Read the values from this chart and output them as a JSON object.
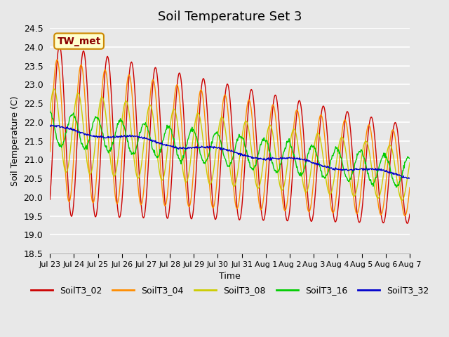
{
  "title": "Soil Temperature Set 3",
  "xlabel": "Time",
  "ylabel": "Soil Temperature (C)",
  "ylim": [
    18.5,
    24.5
  ],
  "annotation": "TW_met",
  "annotation_color": "#8B0000",
  "annotation_bg": "#FFFFCC",
  "annotation_border": "#CC8800",
  "plot_bg": "#E8E8E8",
  "legend_entries": [
    "SoilT3_02",
    "SoilT3_04",
    "SoilT3_08",
    "SoilT3_16",
    "SoilT3_32"
  ],
  "line_colors": [
    "#CC0000",
    "#FF8C00",
    "#CCCC00",
    "#00CC00",
    "#0000CC"
  ],
  "x_tick_labels": [
    "Jul 23",
    "Jul 24",
    "Jul 25",
    "Jul 26",
    "Jul 27",
    "Jul 28",
    "Jul 29",
    "Jul 30",
    "Jul 31",
    "Aug 1",
    "Aug 2",
    "Aug 3",
    "Aug 4",
    "Aug 5",
    "Aug 6",
    "Aug 7"
  ],
  "n_days": 15,
  "n_points_per_day": 48
}
